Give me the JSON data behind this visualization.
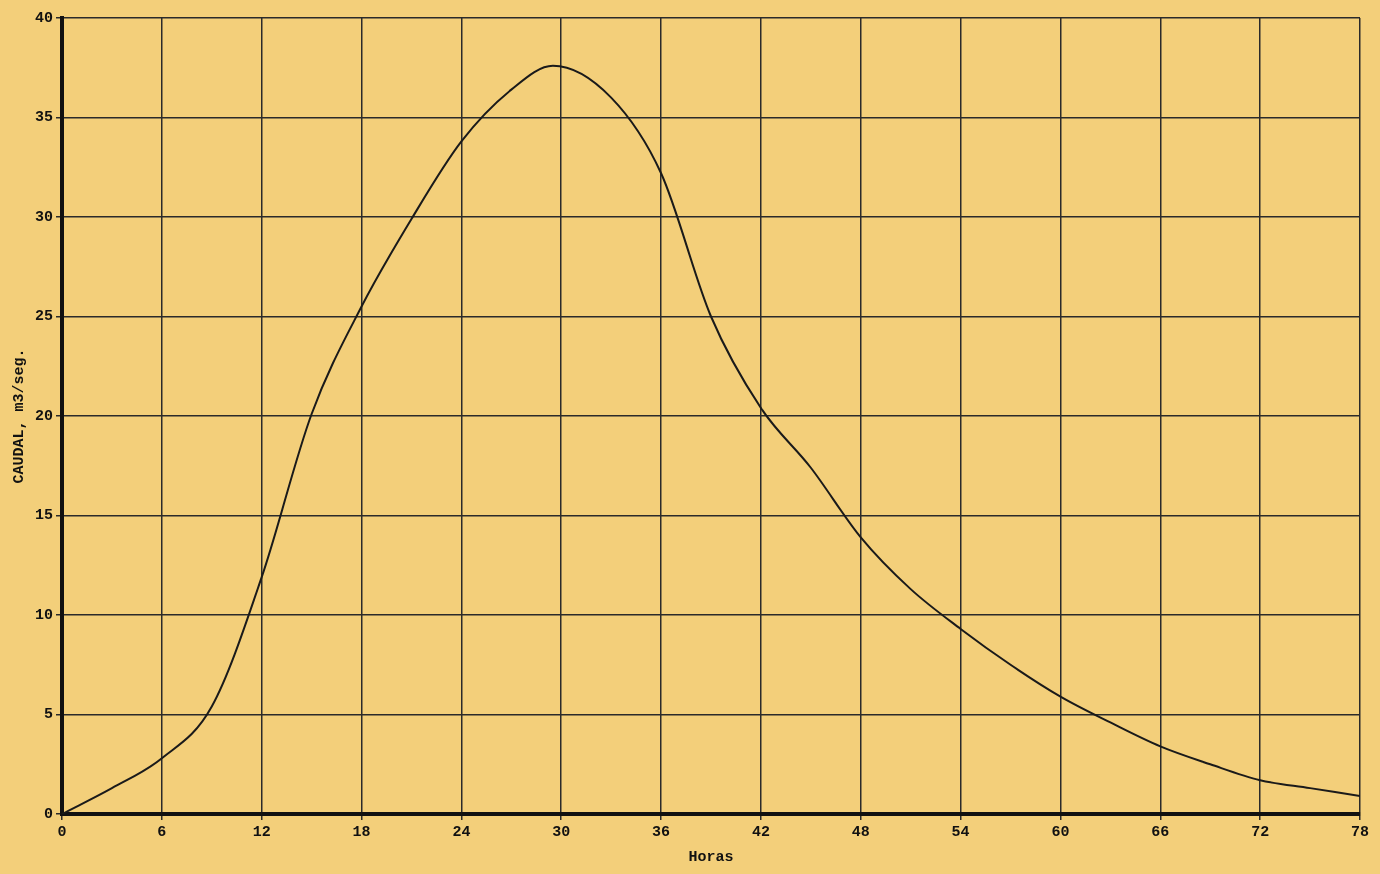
{
  "chart_data": {
    "type": "line",
    "xlabel": "Horas",
    "ylabel": "CAUDAL, m3/seg.",
    "series": [
      {
        "color": "#1a1a1a",
        "x": [
          0,
          3,
          6,
          9,
          12,
          15,
          18,
          21,
          24,
          27,
          29.5,
          33,
          36,
          39,
          42,
          45,
          48,
          51,
          54,
          57,
          60,
          63,
          66,
          69,
          72,
          75,
          78
        ],
        "values": [
          0,
          1.3,
          2.8,
          5.4,
          11.9,
          20.1,
          25.5,
          29.9,
          33.8,
          36.4,
          37.6,
          36.0,
          32.2,
          25.0,
          20.4,
          17.4,
          13.9,
          11.3,
          9.3,
          7.5,
          5.9,
          4.6,
          3.4,
          2.5,
          1.7,
          1.3,
          0.9
        ]
      }
    ],
    "xlim": [
      0,
      78
    ],
    "ylim": [
      0,
      40
    ],
    "xticks": [
      0,
      6,
      12,
      18,
      24,
      30,
      36,
      42,
      48,
      54,
      60,
      66,
      72,
      78
    ],
    "yticks": [
      0,
      5,
      10,
      15,
      20,
      25,
      30,
      35,
      40
    ],
    "grid": true,
    "legend": false,
    "marker": "none",
    "line_style": "solid"
  }
}
